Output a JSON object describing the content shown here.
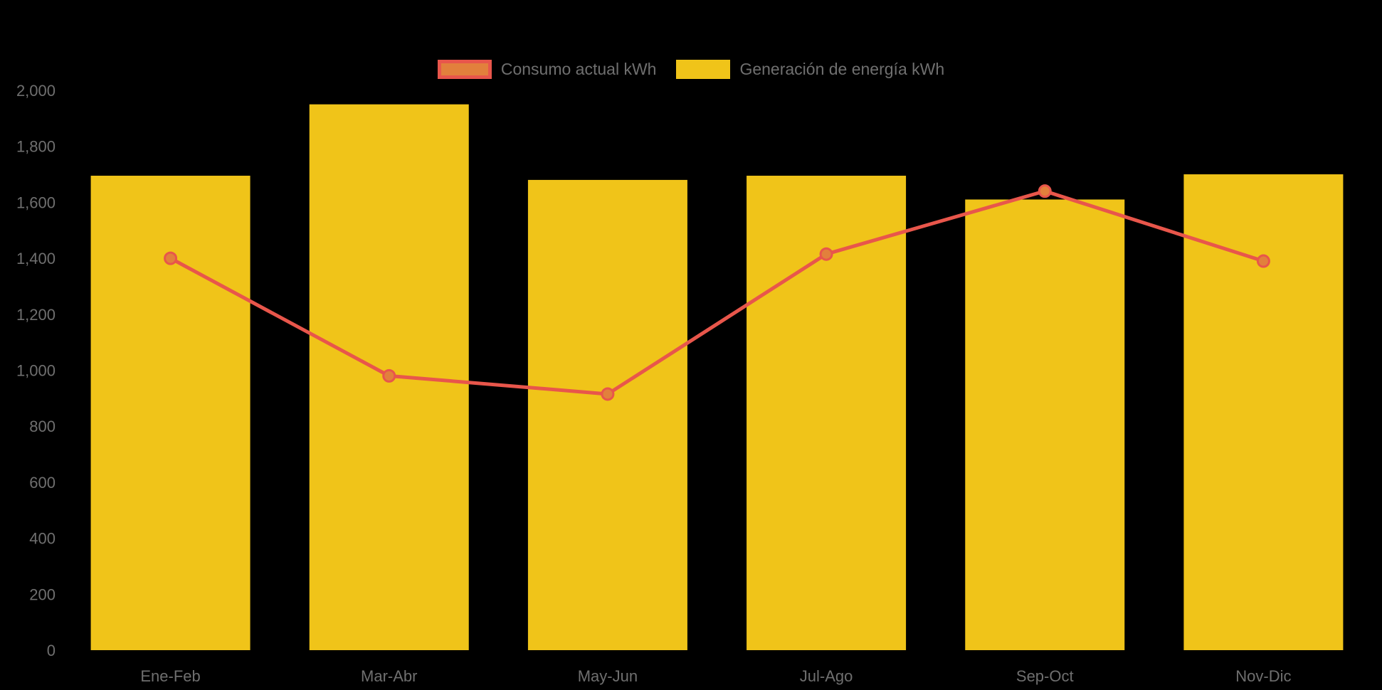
{
  "chart_data": {
    "type": "bar",
    "subtype": "bar-with-line-overlay",
    "categories": [
      "Ene-Feb",
      "Mar-Abr",
      "May-Jun",
      "Jul-Ago",
      "Sep-Oct",
      "Nov-Dic"
    ],
    "series": [
      {
        "name": "Consumo actual kWh",
        "type": "line",
        "color": "#E8564B",
        "marker_fill": "#E2803C",
        "values": [
          1400,
          980,
          915,
          1415,
          1640,
          1390
        ]
      },
      {
        "name": "Generación de energía kWh",
        "type": "bar",
        "color": "#F0C419",
        "values": [
          1695,
          1950,
          1680,
          1695,
          1610,
          1700
        ]
      }
    ],
    "title": "",
    "xlabel": "",
    "ylabel": "",
    "ylim": [
      0,
      2000
    ],
    "ytick_step": 200,
    "ytick_labels": [
      "0",
      "200",
      "400",
      "600",
      "800",
      "1,000",
      "1,200",
      "1,400",
      "1,600",
      "1,800",
      "2,000"
    ],
    "grid": false,
    "legend_position": "top-center",
    "background_color": "#000000",
    "text_color": "#6F6F6F"
  }
}
